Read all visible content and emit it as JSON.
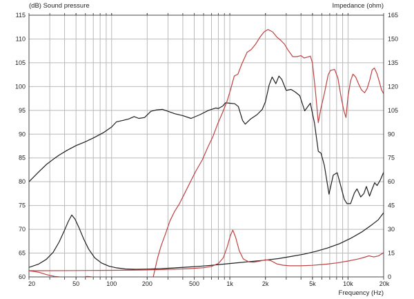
{
  "chart": {
    "title_left": "(dB)  Sound pressure",
    "title_right": "Impedance  (ohm)",
    "xlabel": "Frequency  (Hz)"
  },
  "chart_data": {
    "type": "line",
    "x_axis": {
      "scale": "log",
      "min": 20,
      "max": 20000,
      "tick_labels": [
        {
          "f": 20,
          "label": "20"
        },
        {
          "f": 50,
          "label": "50"
        },
        {
          "f": 100,
          "label": "100"
        },
        {
          "f": 200,
          "label": "200"
        },
        {
          "f": 500,
          "label": "500"
        },
        {
          "f": 1000,
          "label": "1k"
        },
        {
          "f": 2000,
          "label": "2k"
        },
        {
          "f": 5000,
          "label": "5k"
        },
        {
          "f": 10000,
          "label": "10k"
        },
        {
          "f": 20000,
          "label": "20k"
        }
      ],
      "gridlines": [
        30,
        40,
        50,
        60,
        70,
        80,
        90,
        100,
        200,
        300,
        400,
        500,
        600,
        700,
        800,
        900,
        1000,
        2000,
        3000,
        4000,
        5000,
        6000,
        7000,
        8000,
        9000,
        10000
      ]
    },
    "left_axis": {
      "unit": "dB",
      "min": 60,
      "max": 115,
      "step": 5,
      "ticks": [
        115,
        110,
        105,
        100,
        95,
        90,
        85,
        80,
        75,
        70,
        65,
        60
      ]
    },
    "right_axis": {
      "unit": "ohm",
      "min": 0,
      "max": 165,
      "step": 15,
      "ticks": [
        165,
        150,
        135,
        120,
        105,
        90,
        75,
        60,
        45,
        30,
        15,
        0
      ]
    },
    "grid": true,
    "colors": {
      "black_curves": "#1c1c1c",
      "red_curves": "#bf4040",
      "grid": "#b9b9b9",
      "frame": "#4a4a4a"
    },
    "series": [
      {
        "name": "sound-pressure-black",
        "axis": "dB",
        "color": "#1c1c1c",
        "points": [
          [
            20,
            80
          ],
          [
            24,
            82
          ],
          [
            28,
            83.6
          ],
          [
            32,
            84.7
          ],
          [
            36,
            85.6
          ],
          [
            42,
            86.6
          ],
          [
            50,
            87.6
          ],
          [
            60,
            88.4
          ],
          [
            70,
            89.2
          ],
          [
            85,
            90.3
          ],
          [
            100,
            91.5
          ],
          [
            110,
            92.6
          ],
          [
            125,
            92.9
          ],
          [
            140,
            93.2
          ],
          [
            155,
            93.7
          ],
          [
            170,
            93.3
          ],
          [
            190,
            93.5
          ],
          [
            215,
            94.8
          ],
          [
            240,
            95.1
          ],
          [
            270,
            95.2
          ],
          [
            300,
            94.8
          ],
          [
            340,
            94.3
          ],
          [
            400,
            93.9
          ],
          [
            470,
            93.3
          ],
          [
            560,
            94.1
          ],
          [
            660,
            95
          ],
          [
            760,
            95.5
          ],
          [
            800,
            95.4
          ],
          [
            870,
            95.9
          ],
          [
            920,
            96.6
          ],
          [
            1000,
            96.5
          ],
          [
            1100,
            96.4
          ],
          [
            1180,
            95.8
          ],
          [
            1280,
            92.9
          ],
          [
            1350,
            92.1
          ],
          [
            1500,
            93.2
          ],
          [
            1700,
            94.1
          ],
          [
            1880,
            95.2
          ],
          [
            2000,
            96.8
          ],
          [
            2150,
            100.3
          ],
          [
            2280,
            102
          ],
          [
            2450,
            100.6
          ],
          [
            2600,
            102.2
          ],
          [
            2750,
            101.5
          ],
          [
            3000,
            99.2
          ],
          [
            3300,
            99.4
          ],
          [
            3600,
            98.8
          ],
          [
            3900,
            98.1
          ],
          [
            4300,
            94.9
          ],
          [
            4600,
            95.9
          ],
          [
            4800,
            96.5
          ],
          [
            5200,
            92.3
          ],
          [
            5600,
            86.4
          ],
          [
            5900,
            86
          ],
          [
            6300,
            83.5
          ],
          [
            6900,
            77.4
          ],
          [
            7500,
            81.4
          ],
          [
            8100,
            81.9
          ],
          [
            8700,
            79
          ],
          [
            9300,
            76.3
          ],
          [
            9800,
            75.4
          ],
          [
            10500,
            75.4
          ],
          [
            11300,
            77.6
          ],
          [
            11900,
            78.5
          ],
          [
            12800,
            76.8
          ],
          [
            13600,
            77.5
          ],
          [
            14300,
            79
          ],
          [
            15200,
            77
          ],
          [
            16000,
            78.5
          ],
          [
            16800,
            79.8
          ],
          [
            17600,
            79.2
          ],
          [
            18700,
            80.3
          ],
          [
            20000,
            82
          ]
        ]
      },
      {
        "name": "sound-pressure-red",
        "axis": "dB",
        "color": "#bf4040",
        "points": [
          [
            20,
            61.3
          ],
          [
            24,
            61
          ],
          [
            28,
            60.5
          ],
          [
            33,
            60.1
          ],
          [
            40,
            59.9
          ],
          [
            48,
            59.6
          ],
          [
            55,
            59.8
          ],
          [
            62,
            60.1
          ],
          [
            68,
            60
          ],
          [
            80,
            59.3
          ],
          [
            120,
            59
          ],
          [
            180,
            59.2
          ],
          [
            210,
            59.7
          ],
          [
            225,
            60
          ],
          [
            245,
            64
          ],
          [
            262,
            66.5
          ],
          [
            287,
            69.2
          ],
          [
            312,
            71.8
          ],
          [
            340,
            73.7
          ],
          [
            375,
            75.4
          ],
          [
            410,
            77.3
          ],
          [
            460,
            79.8
          ],
          [
            515,
            82.2
          ],
          [
            585,
            84.6
          ],
          [
            655,
            87.4
          ],
          [
            720,
            89.5
          ],
          [
            790,
            92.2
          ],
          [
            870,
            94.6
          ],
          [
            950,
            97
          ],
          [
            1020,
            99.6
          ],
          [
            1090,
            102.2
          ],
          [
            1170,
            102.6
          ],
          [
            1260,
            104.7
          ],
          [
            1400,
            107.2
          ],
          [
            1520,
            107.8
          ],
          [
            1650,
            108.9
          ],
          [
            1800,
            110.4
          ],
          [
            1950,
            111.5
          ],
          [
            2100,
            112
          ],
          [
            2300,
            111.5
          ],
          [
            2500,
            110.4
          ],
          [
            2700,
            109.7
          ],
          [
            2900,
            108.9
          ],
          [
            3100,
            107.7
          ],
          [
            3400,
            106.3
          ],
          [
            3700,
            106.3
          ],
          [
            4000,
            106.5
          ],
          [
            4250,
            106
          ],
          [
            4550,
            106.2
          ],
          [
            4800,
            106.4
          ],
          [
            5000,
            105
          ],
          [
            5300,
            99
          ],
          [
            5600,
            92.4
          ],
          [
            5900,
            95.5
          ],
          [
            6300,
            98.5
          ],
          [
            6800,
            102.5
          ],
          [
            7100,
            103.4
          ],
          [
            7700,
            103.6
          ],
          [
            8200,
            101.8
          ],
          [
            8700,
            98
          ],
          [
            9200,
            95
          ],
          [
            9600,
            93.5
          ],
          [
            10000,
            98
          ],
          [
            10500,
            101.2
          ],
          [
            11000,
            102.6
          ],
          [
            11600,
            102
          ],
          [
            12300,
            100.5
          ],
          [
            13000,
            99.3
          ],
          [
            13800,
            98.7
          ],
          [
            14500,
            99.6
          ],
          [
            15300,
            101.5
          ],
          [
            16000,
            103.5
          ],
          [
            16700,
            103.9
          ],
          [
            17500,
            102.8
          ],
          [
            18300,
            101.2
          ],
          [
            19200,
            99.3
          ],
          [
            20000,
            98.5
          ]
        ]
      },
      {
        "name": "impedance-black",
        "axis": "ohm",
        "color": "#1c1c1c",
        "points": [
          [
            20,
            6
          ],
          [
            24,
            8
          ],
          [
            28,
            11
          ],
          [
            32,
            15.5
          ],
          [
            36,
            22
          ],
          [
            40,
            29.5
          ],
          [
            43,
            35
          ],
          [
            46,
            39
          ],
          [
            49,
            36.5
          ],
          [
            53,
            31
          ],
          [
            58,
            24
          ],
          [
            64,
            17.5
          ],
          [
            72,
            12
          ],
          [
            82,
            8.8
          ],
          [
            95,
            6.8
          ],
          [
            110,
            5.7
          ],
          [
            130,
            5
          ],
          [
            160,
            4.8
          ],
          [
            200,
            4.9
          ],
          [
            260,
            5.2
          ],
          [
            330,
            5.6
          ],
          [
            420,
            6.1
          ],
          [
            540,
            6.6
          ],
          [
            700,
            7.3
          ],
          [
            900,
            8.1
          ],
          [
            1150,
            8.9
          ],
          [
            1500,
            9.7
          ],
          [
            2000,
            10.6
          ],
          [
            2600,
            11.6
          ],
          [
            3300,
            12.9
          ],
          [
            4200,
            14.3
          ],
          [
            5300,
            16
          ],
          [
            6700,
            18.2
          ],
          [
            8500,
            21
          ],
          [
            10500,
            24.3
          ],
          [
            13000,
            28.2
          ],
          [
            16000,
            33
          ],
          [
            18000,
            36
          ],
          [
            20000,
            40.5
          ]
        ]
      },
      {
        "name": "impedance-red",
        "axis": "ohm",
        "color": "#bf4040",
        "points": [
          [
            20,
            3.9
          ],
          [
            30,
            3.9
          ],
          [
            50,
            4
          ],
          [
            80,
            4.1
          ],
          [
            120,
            4.2
          ],
          [
            200,
            4.4
          ],
          [
            300,
            4.7
          ],
          [
            450,
            5.2
          ],
          [
            600,
            5.8
          ],
          [
            700,
            6.6
          ],
          [
            800,
            8.5
          ],
          [
            880,
            12
          ],
          [
            950,
            19
          ],
          [
            1010,
            26
          ],
          [
            1060,
            29.5
          ],
          [
            1120,
            25
          ],
          [
            1200,
            16.5
          ],
          [
            1300,
            11.3
          ],
          [
            1450,
            9.4
          ],
          [
            1600,
            9.3
          ],
          [
            1800,
            10
          ],
          [
            2000,
            10.8
          ],
          [
            2200,
            10.4
          ],
          [
            2500,
            8.2
          ],
          [
            2800,
            7.4
          ],
          [
            3200,
            7
          ],
          [
            4000,
            7
          ],
          [
            5000,
            7.3
          ],
          [
            6500,
            8
          ],
          [
            8000,
            8.8
          ],
          [
            10000,
            10
          ],
          [
            12000,
            11.2
          ],
          [
            13500,
            12.2
          ],
          [
            15000,
            13.3
          ],
          [
            16500,
            12.6
          ],
          [
            18000,
            13.2
          ],
          [
            20000,
            15.3
          ]
        ]
      }
    ]
  }
}
